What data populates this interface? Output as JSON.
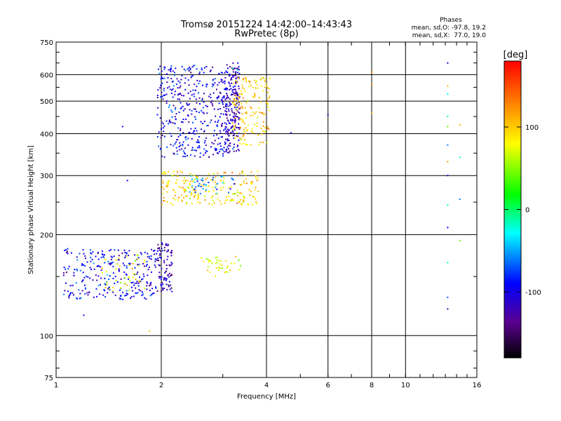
{
  "chart_data": {
    "type": "scatter",
    "title": "Tromsø 20151224 14:42:00–14:43:43",
    "subtitle": "RwPretec (8p)",
    "xlabel": "Frequency [MHz]",
    "ylabel": "Stationary phase Virtual Height [km]",
    "x_scale": "log",
    "y_scale": "log",
    "xlim": [
      1,
      16
    ],
    "ylim": [
      75,
      750
    ],
    "x_ticks": [
      1,
      2,
      4,
      6,
      8,
      10,
      16
    ],
    "y_ticks": [
      75,
      100,
      200,
      300,
      400,
      500,
      600,
      750
    ],
    "grid": true,
    "phases": {
      "title": "Phases",
      "line_o": "mean, sd,O: -97.8, 19.2",
      "line_x": "mean, sd,X:  77.0, 19.0"
    },
    "colorbar": {
      "label": "[deg]",
      "range": [
        -180,
        180
      ],
      "ticks": [
        100,
        0,
        -100
      ]
    },
    "series": [
      {
        "x_range": [
          1.05,
          1.95
        ],
        "y_range": [
          128,
          182
        ],
        "phase_mean": -95,
        "count": 280
      },
      {
        "x_range": [
          1.95,
          2.15
        ],
        "y_range": [
          135,
          190
        ],
        "phase_mean": -120,
        "count": 90
      },
      {
        "x_range": [
          1.35,
          1.8
        ],
        "y_range": [
          135,
          175
        ],
        "phase_mean": 80,
        "count": 45
      },
      {
        "x_range": [
          1.95,
          3.1
        ],
        "y_range": [
          340,
          640
        ],
        "phase_mean": -100,
        "count": 420
      },
      {
        "x_range": [
          3.05,
          3.35
        ],
        "y_range": [
          350,
          650
        ],
        "phase_mean": -115,
        "count": 200
      },
      {
        "x_range": [
          3.2,
          4.1
        ],
        "y_range": [
          370,
          590
        ],
        "phase_mean": 100,
        "count": 160
      },
      {
        "x_range": [
          2.0,
          3.8
        ],
        "y_range": [
          245,
          310
        ],
        "phase_mean": 95,
        "count": 220
      },
      {
        "x_range": [
          2.4,
          3.3
        ],
        "y_range": [
          265,
          300
        ],
        "phase_mean": -60,
        "count": 40
      },
      {
        "x_range": [
          2.6,
          3.4
        ],
        "y_range": [
          150,
          172
        ],
        "phase_mean": 70,
        "count": 40
      }
    ],
    "points": [
      {
        "x": 13.2,
        "y": 650,
        "phase": -110
      },
      {
        "x": 13.2,
        "y": 555,
        "phase": 110
      },
      {
        "x": 13.2,
        "y": 525,
        "phase": -30
      },
      {
        "x": 13.2,
        "y": 450,
        "phase": -10
      },
      {
        "x": 13.2,
        "y": 420,
        "phase": 40
      },
      {
        "x": 13.2,
        "y": 370,
        "phase": -60
      },
      {
        "x": 13.2,
        "y": 330,
        "phase": 120
      },
      {
        "x": 13.2,
        "y": 300,
        "phase": -100
      },
      {
        "x": 13.2,
        "y": 245,
        "phase": -20
      },
      {
        "x": 13.2,
        "y": 210,
        "phase": -90
      },
      {
        "x": 13.2,
        "y": 165,
        "phase": -20
      },
      {
        "x": 13.2,
        "y": 130,
        "phase": -70
      },
      {
        "x": 13.2,
        "y": 120,
        "phase": -120
      },
      {
        "x": 14.3,
        "y": 425,
        "phase": 110
      },
      {
        "x": 14.3,
        "y": 340,
        "phase": -20
      },
      {
        "x": 14.3,
        "y": 255,
        "phase": -60
      },
      {
        "x": 14.3,
        "y": 192,
        "phase": 40
      },
      {
        "x": 8.0,
        "y": 610,
        "phase": 130
      },
      {
        "x": 8.0,
        "y": 560,
        "phase": 130
      },
      {
        "x": 8.0,
        "y": 460,
        "phase": 110
      },
      {
        "x": 6.0,
        "y": 455,
        "phase": -110
      },
      {
        "x": 4.7,
        "y": 402,
        "phase": -100
      },
      {
        "x": 3.3,
        "y": 620,
        "phase": -20
      },
      {
        "x": 3.2,
        "y": 625,
        "phase": -10
      },
      {
        "x": 1.2,
        "y": 115,
        "phase": -100
      },
      {
        "x": 1.85,
        "y": 103,
        "phase": 100
      },
      {
        "x": 1.55,
        "y": 420,
        "phase": -100
      },
      {
        "x": 1.6,
        "y": 290,
        "phase": -90
      }
    ]
  }
}
